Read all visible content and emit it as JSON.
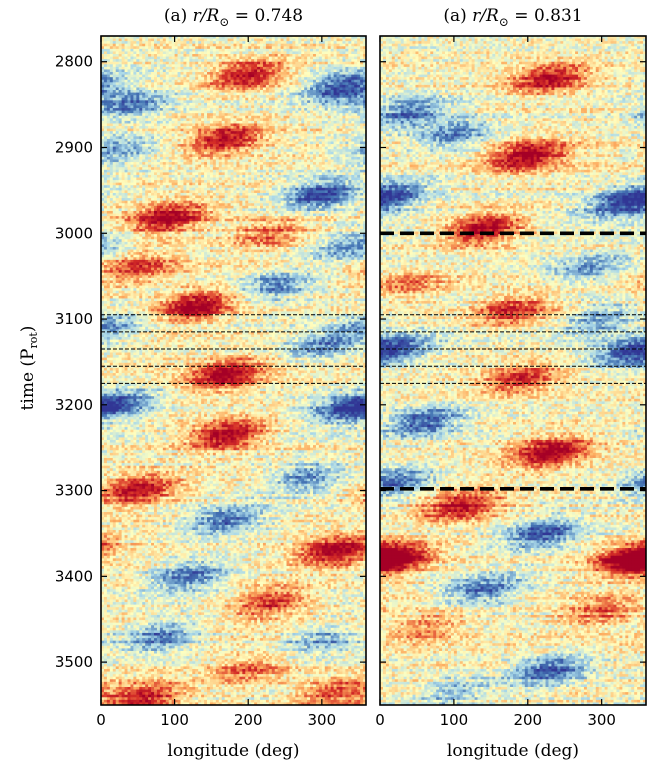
{
  "figure": {
    "ylabel_main": "time (P",
    "ylabel_sub": "rot",
    "ylabel_close": ")"
  },
  "chart_data": [
    {
      "type": "heatmap",
      "title_prefix": "(a) ",
      "title_var": "r/R",
      "title_sub": "⊙",
      "title_value": " = 0.748",
      "xlabel": "longitude (deg)",
      "xlim": [
        0,
        360
      ],
      "ylim": [
        3550,
        2770
      ],
      "x_ticks": [
        0,
        100,
        200,
        300
      ],
      "y_ticks": [
        2800,
        2900,
        3000,
        3100,
        3200,
        3300,
        3400,
        3500
      ],
      "colormap": [
        "#313695",
        "#4575b4",
        "#abd9e9",
        "#ffffbf",
        "#fdae61",
        "#d73027",
        "#a50026"
      ],
      "blobs": [
        {
          "lon": 200,
          "t": 2815,
          "amp": 0.9
        },
        {
          "lon": 330,
          "t": 2830,
          "amp": -0.9
        },
        {
          "lon": 40,
          "t": 2850,
          "amp": -0.6
        },
        {
          "lon": 170,
          "t": 2890,
          "amp": 0.9
        },
        {
          "lon": 20,
          "t": 2905,
          "amp": -0.5
        },
        {
          "lon": 300,
          "t": 2955,
          "amp": -0.9
        },
        {
          "lon": 90,
          "t": 2982,
          "amp": 1.0
        },
        {
          "lon": 230,
          "t": 3000,
          "amp": 0.5
        },
        {
          "lon": 340,
          "t": 3015,
          "amp": -0.6
        },
        {
          "lon": 50,
          "t": 3040,
          "amp": 0.6
        },
        {
          "lon": 240,
          "t": 3060,
          "amp": -0.6
        },
        {
          "lon": 130,
          "t": 3085,
          "amp": 1.0
        },
        {
          "lon": 10,
          "t": 3110,
          "amp": -0.5
        },
        {
          "lon": 300,
          "t": 3130,
          "amp": -0.6
        },
        {
          "lon": 170,
          "t": 3165,
          "amp": 0.9
        },
        {
          "lon": 20,
          "t": 3200,
          "amp": -0.7
        },
        {
          "lon": 330,
          "t": 3205,
          "amp": -0.7
        },
        {
          "lon": 170,
          "t": 3235,
          "amp": 1.0
        },
        {
          "lon": 280,
          "t": 3285,
          "amp": -0.6
        },
        {
          "lon": 50,
          "t": 3300,
          "amp": 0.9
        },
        {
          "lon": 170,
          "t": 3335,
          "amp": -0.7
        },
        {
          "lon": 320,
          "t": 3370,
          "amp": 1.0
        },
        {
          "lon": 120,
          "t": 3400,
          "amp": -0.7
        },
        {
          "lon": 230,
          "t": 3430,
          "amp": 0.7
        },
        {
          "lon": 80,
          "t": 3470,
          "amp": -0.7
        },
        {
          "lon": 300,
          "t": 3475,
          "amp": -0.5
        },
        {
          "lon": 200,
          "t": 3510,
          "amp": 0.5
        },
        {
          "lon": 60,
          "t": 3540,
          "amp": 0.8
        },
        {
          "lon": 320,
          "t": 3535,
          "amp": 0.6
        }
      ],
      "hlines": [
        {
          "t": 3095,
          "style": "thin"
        },
        {
          "t": 3115,
          "style": "thin"
        },
        {
          "t": 3135,
          "style": "thin"
        },
        {
          "t": 3155,
          "style": "thin"
        },
        {
          "t": 3175,
          "style": "thin"
        }
      ]
    },
    {
      "type": "heatmap",
      "title_prefix": "(a) ",
      "title_var": "r/R",
      "title_sub": "⊙",
      "title_value": " = 0.831",
      "xlabel": "longitude (deg)",
      "xlim": [
        0,
        360
      ],
      "ylim": [
        3550,
        2770
      ],
      "x_ticks": [
        0,
        100,
        200,
        300
      ],
      "y_ticks": [
        2800,
        2900,
        3000,
        3100,
        3200,
        3300,
        3400,
        3500
      ],
      "colormap": [
        "#313695",
        "#4575b4",
        "#abd9e9",
        "#ffffbf",
        "#fdae61",
        "#d73027",
        "#a50026"
      ],
      "blobs": [
        {
          "lon": 230,
          "t": 2820,
          "amp": 0.9
        },
        {
          "lon": 40,
          "t": 2860,
          "amp": -0.7
        },
        {
          "lon": 100,
          "t": 2885,
          "amp": -0.6
        },
        {
          "lon": 200,
          "t": 2910,
          "amp": 1.0
        },
        {
          "lon": 20,
          "t": 2955,
          "amp": -0.6
        },
        {
          "lon": 330,
          "t": 2965,
          "amp": -0.8
        },
        {
          "lon": 140,
          "t": 2995,
          "amp": 1.0
        },
        {
          "lon": 280,
          "t": 3040,
          "amp": -0.5
        },
        {
          "lon": 40,
          "t": 3060,
          "amp": 0.4
        },
        {
          "lon": 180,
          "t": 3090,
          "amp": 0.7
        },
        {
          "lon": 300,
          "t": 3100,
          "amp": -0.5
        },
        {
          "lon": 20,
          "t": 3135,
          "amp": -0.7
        },
        {
          "lon": 330,
          "t": 3140,
          "amp": -0.6
        },
        {
          "lon": 190,
          "t": 3170,
          "amp": 0.7
        },
        {
          "lon": 60,
          "t": 3220,
          "amp": -0.8
        },
        {
          "lon": 230,
          "t": 3255,
          "amp": 1.0
        },
        {
          "lon": 20,
          "t": 3290,
          "amp": -0.7
        },
        {
          "lon": 110,
          "t": 3318,
          "amp": 0.9
        },
        {
          "lon": 220,
          "t": 3350,
          "amp": -0.8
        },
        {
          "lon": 20,
          "t": 3380,
          "amp": 1.0
        },
        {
          "lon": 340,
          "t": 3380,
          "amp": 1.0
        },
        {
          "lon": 140,
          "t": 3415,
          "amp": -0.7
        },
        {
          "lon": 300,
          "t": 3440,
          "amp": 0.5
        },
        {
          "lon": 60,
          "t": 3460,
          "amp": 0.4
        },
        {
          "lon": 230,
          "t": 3510,
          "amp": -0.8
        },
        {
          "lon": 100,
          "t": 3535,
          "amp": -0.4
        }
      ],
      "hlines": [
        {
          "t": 3000,
          "style": "thick"
        },
        {
          "t": 3095,
          "style": "thin"
        },
        {
          "t": 3115,
          "style": "thin"
        },
        {
          "t": 3135,
          "style": "thin"
        },
        {
          "t": 3155,
          "style": "thin"
        },
        {
          "t": 3175,
          "style": "thin"
        },
        {
          "t": 3298,
          "style": "thick"
        }
      ]
    }
  ]
}
